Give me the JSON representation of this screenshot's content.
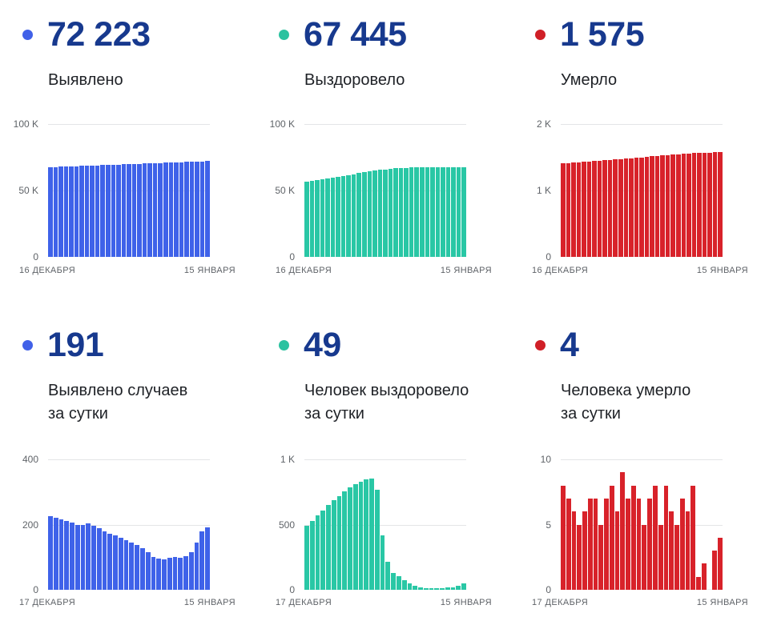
{
  "colors": {
    "headline_number": "#17398e",
    "blue": "#3f62e9",
    "teal": "#29c7a5",
    "red": "#d8222a",
    "dot_blue": "#4161e8",
    "dot_teal": "#2bc2a0",
    "dot_red": "#d01f27",
    "axis_text": "#5f6368",
    "gridline": "#e4e5e7"
  },
  "panels": [
    {
      "value": "72 223",
      "label_lines": [
        "Выявлено"
      ],
      "dot_color": "#4161e8"
    },
    {
      "value": "67 445",
      "label_lines": [
        "Выздоровело"
      ],
      "dot_color": "#2bc2a0"
    },
    {
      "value": "1 575",
      "label_lines": [
        "Умерло"
      ],
      "dot_color": "#d01f27"
    },
    {
      "value": "191",
      "label_lines": [
        "Выявлено случаев",
        "за сутки"
      ],
      "dot_color": "#4161e8"
    },
    {
      "value": "49",
      "label_lines": [
        "Человек выздоровело",
        "за сутки"
      ],
      "dot_color": "#2bc2a0"
    },
    {
      "value": "4",
      "label_lines": [
        "Человека умерло",
        "за сутки"
      ],
      "dot_color": "#d01f27"
    }
  ],
  "chart_data": [
    {
      "type": "bar",
      "title": "Выявлено",
      "headline_value": "72 223",
      "color": "#3f62e9",
      "ylim": [
        0,
        100000
      ],
      "y_ticks": [
        "100 K",
        "50 K",
        "0"
      ],
      "x_ticks": [
        "16 ДЕКАБРЯ",
        "15 ЯНВАРЯ"
      ],
      "grid": "horizontal",
      "legend": "none",
      "values": [
        67600,
        67750,
        67900,
        68050,
        68200,
        68330,
        68460,
        68600,
        68750,
        68900,
        69050,
        69200,
        69350,
        69500,
        69650,
        69800,
        69950,
        70100,
        70250,
        70400,
        70550,
        70700,
        70850,
        71000,
        71150,
        71300,
        71450,
        71600,
        71750,
        71980,
        72223
      ]
    },
    {
      "type": "bar",
      "title": "Выздоровело",
      "headline_value": "67 445",
      "color": "#29c7a5",
      "ylim": [
        0,
        100000
      ],
      "y_ticks": [
        "100 K",
        "50 K",
        "0"
      ],
      "x_ticks": [
        "16 ДЕКАБРЯ",
        "15 ЯНВАРЯ"
      ],
      "grid": "horizontal",
      "legend": "none",
      "values": [
        56500,
        57100,
        57700,
        58300,
        58950,
        59600,
        60250,
        60900,
        61600,
        62300,
        63000,
        63650,
        64300,
        64900,
        65450,
        65950,
        66350,
        66700,
        66950,
        67100,
        67180,
        67230,
        67270,
        67300,
        67320,
        67340,
        67360,
        67380,
        67400,
        67425,
        67445
      ]
    },
    {
      "type": "bar",
      "title": "Умерло",
      "headline_value": "1 575",
      "color": "#d8222a",
      "ylim": [
        0,
        2000
      ],
      "y_ticks": [
        "2 K",
        "1 K",
        "0"
      ],
      "x_ticks": [
        "16 ДЕКАБРЯ",
        "15 ЯНВАРЯ"
      ],
      "grid": "horizontal",
      "legend": "none",
      "values": [
        1408,
        1413,
        1418,
        1423,
        1429,
        1435,
        1441,
        1447,
        1453,
        1459,
        1465,
        1471,
        1478,
        1485,
        1492,
        1499,
        1506,
        1513,
        1520,
        1527,
        1533,
        1539,
        1545,
        1551,
        1556,
        1561,
        1565,
        1568,
        1571,
        1573,
        1575
      ]
    },
    {
      "type": "bar",
      "title": "Выявлено случаев за сутки",
      "headline_value": "191",
      "color": "#3f62e9",
      "ylim": [
        0,
        400
      ],
      "y_ticks": [
        "400",
        "200",
        "0"
      ],
      "x_ticks": [
        "17 ДЕКАБРЯ",
        "15 ЯНВАРЯ"
      ],
      "grid": "horizontal",
      "legend": "none",
      "values": [
        225,
        222,
        215,
        210,
        205,
        198,
        200,
        204,
        196,
        188,
        180,
        172,
        166,
        160,
        152,
        146,
        138,
        128,
        115,
        100,
        95,
        94,
        97,
        100,
        98,
        103,
        115,
        145,
        180,
        191
      ]
    },
    {
      "type": "bar",
      "title": "Человек выздоровело за сутки",
      "headline_value": "49",
      "color": "#29c7a5",
      "ylim": [
        0,
        1000
      ],
      "y_ticks": [
        "1 K",
        "500",
        "0"
      ],
      "x_ticks": [
        "17 ДЕКАБРЯ",
        "15 ЯНВАРЯ"
      ],
      "grid": "horizontal",
      "legend": "none",
      "values": [
        490,
        530,
        570,
        610,
        650,
        690,
        720,
        755,
        785,
        810,
        830,
        845,
        850,
        770,
        420,
        215,
        130,
        105,
        75,
        50,
        30,
        20,
        15,
        12,
        12,
        14,
        16,
        20,
        30,
        49
      ]
    },
    {
      "type": "bar",
      "title": "Человека умерло за сутки",
      "headline_value": "4",
      "color": "#d8222a",
      "ylim": [
        0,
        10
      ],
      "y_ticks": [
        "10",
        "5",
        "0"
      ],
      "x_ticks": [
        "17 ДЕКАБРЯ",
        "15 ЯНВАРЯ"
      ],
      "grid": "horizontal",
      "legend": "none",
      "values": [
        8,
        7,
        6,
        5,
        6,
        7,
        7,
        5,
        7,
        8,
        6,
        9,
        7,
        8,
        7,
        5,
        7,
        8,
        5,
        8,
        6,
        5,
        7,
        6,
        8,
        1,
        2,
        0,
        3,
        4
      ]
    }
  ]
}
